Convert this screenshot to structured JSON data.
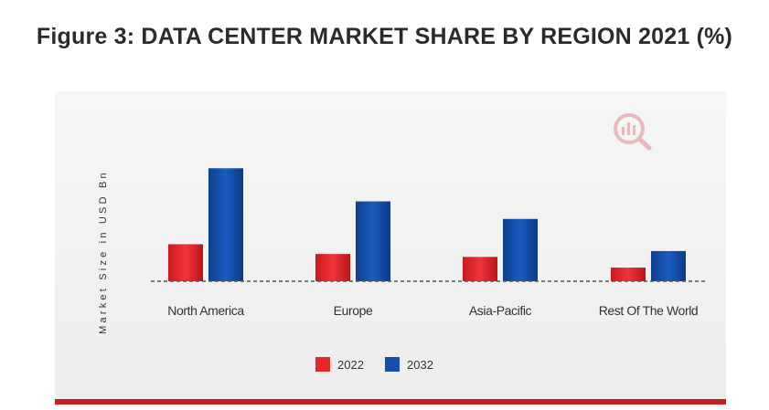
{
  "page": {
    "title": "Figure 3: DATA CENTER MARKET SHARE BY REGION 2021 (%)"
  },
  "colors": {
    "series_2022": "#e8272b",
    "series_2032": "#1450a8",
    "baseline": "#555555",
    "watermark": "#e9a3a3",
    "bottom_bar": "#c61f1f"
  },
  "icons": {
    "watermark": "magnifier-chart-icon"
  },
  "chart_data": {
    "type": "bar",
    "title": "",
    "xlabel": "",
    "ylabel": "Market Size in USD Bn",
    "categories": [
      "North America",
      "Europe",
      "Asia-Pacific",
      "Rest Of The World"
    ],
    "series": [
      {
        "name": "2022",
        "values": [
          38,
          28,
          25,
          14
        ]
      },
      {
        "name": "2032",
        "values": [
          116,
          82,
          64,
          31
        ]
      }
    ],
    "ylim": [
      0,
      150
    ],
    "grid": false,
    "legend_placement": "bottom-center",
    "axis_ticks_shown": false
  }
}
